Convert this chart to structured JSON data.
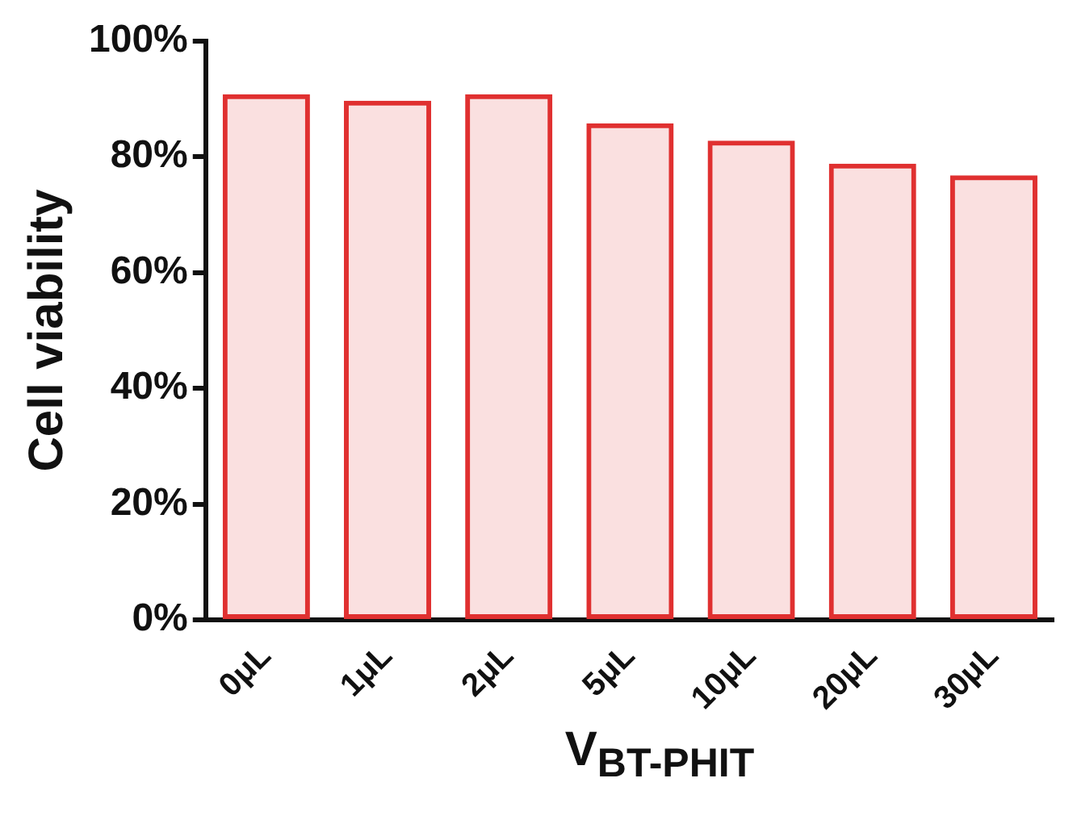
{
  "chart_data": {
    "type": "bar",
    "xlabel": "V$_{BT-PHIT}$",
    "ylabel": "Cell viability",
    "categories": [
      "0μL",
      "1μL",
      "2μL",
      "5μL",
      "10μL",
      "20μL",
      "30μL"
    ],
    "values": [
      90.8,
      89.7,
      90.8,
      85.8,
      82.8,
      78.8,
      76.8
    ],
    "color": "#e03030",
    "ylim": [
      0,
      100
    ],
    "yticks": [
      {
        "value": 0,
        "label": "0%"
      },
      {
        "value": 20,
        "label": "20%"
      },
      {
        "value": 40,
        "label": "40%"
      },
      {
        "value": 60,
        "label": "60%"
      },
      {
        "value": 80,
        "label": "80%"
      },
      {
        "value": 100,
        "label": "100%"
      }
    ],
    "grid": false,
    "legend": false
  }
}
